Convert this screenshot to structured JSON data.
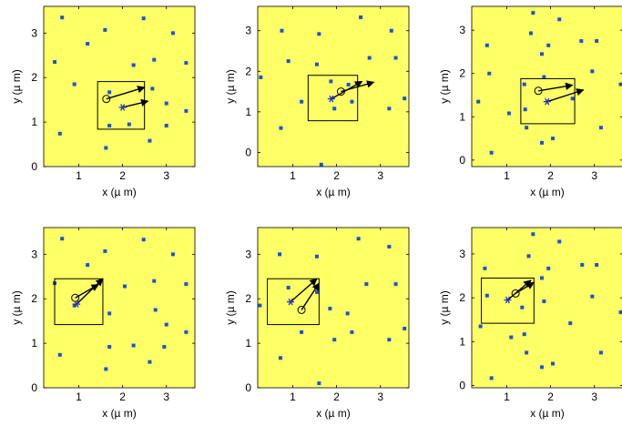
{
  "colors": {
    "plot_background": "#ffff66",
    "dot": "#1a53d6",
    "star": "#1a33cc",
    "axes": "#000000"
  },
  "chart_data": [
    {
      "type": "scatter",
      "xlabel": "x (µ m)",
      "ylabel": "y (µ m)",
      "xlim": [
        0.2,
        3.65
      ],
      "ylim": [
        0,
        3.6
      ],
      "xticks": [
        1,
        2,
        3
      ],
      "yticks": [
        0,
        1,
        2,
        3
      ],
      "box": {
        "x0": 1.43,
        "y0": 0.84,
        "x1": 2.5,
        "y1": 1.91
      },
      "circle": [
        1.63,
        1.52
      ],
      "star": [
        2.0,
        1.33
      ],
      "arrows": [
        {
          "from": [
            1.63,
            1.52
          ],
          "to": [
            2.5,
            1.78
          ]
        },
        {
          "from": [
            2.0,
            1.33
          ],
          "to": [
            2.58,
            1.47
          ]
        }
      ],
      "points": [
        [
          0.62,
          3.35
        ],
        [
          1.2,
          2.76
        ],
        [
          1.6,
          3.07
        ],
        [
          2.48,
          3.33
        ],
        [
          3.15,
          3.0
        ],
        [
          0.45,
          2.35
        ],
        [
          2.72,
          2.4
        ],
        [
          3.45,
          2.33
        ],
        [
          2.25,
          2.28
        ],
        [
          0.9,
          1.85
        ],
        [
          1.7,
          1.67
        ],
        [
          2.68,
          1.75
        ],
        [
          3.0,
          1.42
        ],
        [
          3.45,
          1.25
        ],
        [
          1.7,
          0.92
        ],
        [
          2.15,
          0.95
        ],
        [
          3.0,
          0.92
        ],
        [
          0.57,
          0.74
        ],
        [
          2.62,
          0.58
        ],
        [
          1.62,
          0.42
        ]
      ]
    },
    {
      "type": "scatter",
      "xlabel": "x (µ m)",
      "ylabel": "y (µ m)",
      "xlim": [
        0.2,
        3.65
      ],
      "ylim": [
        -0.35,
        3.6
      ],
      "xticks": [
        1,
        2,
        3
      ],
      "yticks": [
        0,
        1,
        2,
        3
      ],
      "box": {
        "x0": 1.35,
        "y0": 0.78,
        "x1": 2.48,
        "y1": 1.9
      },
      "circle": [
        2.1,
        1.5
      ],
      "star": [
        1.88,
        1.32
      ],
      "arrows": [
        {
          "from": [
            2.1,
            1.5
          ],
          "to": [
            2.85,
            1.73
          ]
        },
        {
          "from": [
            1.88,
            1.32
          ],
          "to": [
            2.58,
            1.75
          ]
        }
      ],
      "points": [
        [
          0.75,
          3.0
        ],
        [
          1.6,
          2.92
        ],
        [
          2.55,
          3.33
        ],
        [
          3.25,
          3.0
        ],
        [
          0.9,
          2.25
        ],
        [
          1.55,
          2.17
        ],
        [
          2.75,
          2.33
        ],
        [
          3.35,
          2.33
        ],
        [
          0.27,
          1.85
        ],
        [
          1.87,
          1.75
        ],
        [
          2.27,
          1.67
        ],
        [
          1.2,
          1.25
        ],
        [
          2.35,
          1.25
        ],
        [
          3.2,
          1.08
        ],
        [
          1.95,
          1.08
        ],
        [
          3.55,
          1.33
        ],
        [
          0.73,
          0.6
        ],
        [
          1.65,
          -0.3
        ]
      ]
    },
    {
      "type": "scatter",
      "xlabel": "x (µ m)",
      "ylabel": "y (µ m)",
      "xlim": [
        0.2,
        3.65
      ],
      "ylim": [
        -0.15,
        3.55
      ],
      "xticks": [
        1,
        2,
        3
      ],
      "yticks": [
        0,
        1,
        2,
        3
      ],
      "box": {
        "x0": 1.32,
        "y0": 0.84,
        "x1": 2.55,
        "y1": 1.88
      },
      "circle": [
        1.72,
        1.6
      ],
      "star": [
        1.92,
        1.35
      ],
      "arrows": [
        {
          "from": [
            1.72,
            1.6
          ],
          "to": [
            2.5,
            1.73
          ]
        },
        {
          "from": [
            1.92,
            1.35
          ],
          "to": [
            2.75,
            1.62
          ]
        }
      ],
      "points": [
        [
          1.6,
          3.4
        ],
        [
          2.2,
          3.25
        ],
        [
          1.55,
          2.93
        ],
        [
          0.55,
          2.65
        ],
        [
          1.95,
          2.65
        ],
        [
          2.7,
          2.75
        ],
        [
          3.05,
          2.75
        ],
        [
          1.8,
          2.45
        ],
        [
          0.6,
          2.0
        ],
        [
          2.95,
          2.05
        ],
        [
          3.6,
          1.75
        ],
        [
          1.4,
          1.75
        ],
        [
          1.85,
          1.92
        ],
        [
          0.35,
          1.35
        ],
        [
          1.05,
          1.08
        ],
        [
          1.42,
          1.17
        ],
        [
          2.5,
          1.42
        ],
        [
          3.15,
          0.75
        ],
        [
          1.45,
          0.75
        ],
        [
          0.65,
          0.17
        ],
        [
          2.05,
          0.5
        ],
        [
          1.8,
          0.4
        ]
      ]
    },
    {
      "type": "scatter",
      "xlabel": "x (µ m)",
      "ylabel": "y (µ m)",
      "xlim": [
        0.2,
        3.65
      ],
      "ylim": [
        0,
        3.6
      ],
      "xticks": [
        1,
        2,
        3
      ],
      "yticks": [
        0,
        1,
        2,
        3
      ],
      "box": {
        "x0": 0.45,
        "y0": 1.42,
        "x1": 1.55,
        "y1": 2.45
      },
      "circle": [
        0.92,
        2.02
      ],
      "star": [
        0.95,
        1.88
      ],
      "arrows": [
        {
          "from": [
            0.92,
            2.02
          ],
          "to": [
            1.45,
            2.32
          ]
        },
        {
          "from": [
            0.95,
            1.88
          ],
          "to": [
            1.55,
            2.45
          ]
        }
      ],
      "points": [
        [
          0.62,
          3.35
        ],
        [
          1.2,
          2.76
        ],
        [
          1.6,
          3.07
        ],
        [
          2.48,
          3.33
        ],
        [
          3.15,
          3.0
        ],
        [
          0.45,
          2.35
        ],
        [
          2.72,
          2.4
        ],
        [
          3.45,
          2.33
        ],
        [
          2.05,
          2.28
        ],
        [
          0.9,
          1.85
        ],
        [
          1.7,
          1.67
        ],
        [
          2.75,
          1.75
        ],
        [
          3.0,
          1.42
        ],
        [
          3.45,
          1.25
        ],
        [
          1.7,
          0.92
        ],
        [
          2.25,
          0.95
        ],
        [
          2.95,
          0.92
        ],
        [
          0.57,
          0.74
        ],
        [
          2.62,
          0.58
        ],
        [
          1.62,
          0.42
        ]
      ]
    },
    {
      "type": "scatter",
      "xlabel": "x (µ m)",
      "ylabel": "y (µ m)",
      "xlim": [
        0.2,
        3.65
      ],
      "ylim": [
        0,
        3.6
      ],
      "xticks": [
        1,
        2,
        3
      ],
      "yticks": [
        0,
        1,
        2,
        3
      ],
      "box": {
        "x0": 0.42,
        "y0": 1.42,
        "x1": 1.6,
        "y1": 2.45
      },
      "circle": [
        1.2,
        1.75
      ],
      "star": [
        0.95,
        1.93
      ],
      "arrows": [
        {
          "from": [
            1.2,
            1.75
          ],
          "to": [
            1.6,
            2.35
          ]
        },
        {
          "from": [
            0.95,
            1.93
          ],
          "to": [
            1.55,
            2.45
          ]
        }
      ],
      "points": [
        [
          0.7,
          3.0
        ],
        [
          1.55,
          2.95
        ],
        [
          2.5,
          3.35
        ],
        [
          3.2,
          3.17
        ],
        [
          0.9,
          2.25
        ],
        [
          1.55,
          2.15
        ],
        [
          2.68,
          2.33
        ],
        [
          3.35,
          2.33
        ],
        [
          0.25,
          1.85
        ],
        [
          1.85,
          1.78
        ],
        [
          2.25,
          1.67
        ],
        [
          1.2,
          1.25
        ],
        [
          2.35,
          1.25
        ],
        [
          3.2,
          1.08
        ],
        [
          1.95,
          1.08
        ],
        [
          3.55,
          1.33
        ],
        [
          0.72,
          0.67
        ],
        [
          1.6,
          0.1
        ]
      ]
    },
    {
      "type": "scatter",
      "xlabel": "x (µ m)",
      "ylabel": "y (µ m)",
      "xlim": [
        0.2,
        3.65
      ],
      "ylim": [
        -0.05,
        3.6
      ],
      "xticks": [
        1,
        2,
        3
      ],
      "yticks": [
        0,
        1,
        2,
        3
      ],
      "box": {
        "x0": 0.42,
        "y0": 1.42,
        "x1": 1.62,
        "y1": 2.45
      },
      "circle": [
        1.2,
        2.1
      ],
      "star": [
        1.02,
        1.95
      ],
      "arrows": [
        {
          "from": [
            1.2,
            2.1
          ],
          "to": [
            1.62,
            2.35
          ]
        },
        {
          "from": [
            1.02,
            1.95
          ],
          "to": [
            1.55,
            2.4
          ]
        }
      ],
      "points": [
        [
          1.6,
          3.45
        ],
        [
          2.2,
          3.28
        ],
        [
          1.5,
          2.95
        ],
        [
          0.5,
          2.67
        ],
        [
          1.95,
          2.67
        ],
        [
          2.72,
          2.75
        ],
        [
          3.05,
          2.75
        ],
        [
          1.8,
          2.45
        ],
        [
          0.55,
          2.05
        ],
        [
          2.95,
          2.03
        ],
        [
          3.6,
          1.67
        ],
        [
          1.35,
          1.78
        ],
        [
          1.85,
          1.92
        ],
        [
          0.4,
          1.35
        ],
        [
          1.1,
          1.1
        ],
        [
          1.4,
          1.17
        ],
        [
          2.45,
          1.42
        ],
        [
          3.15,
          0.75
        ],
        [
          1.45,
          0.75
        ],
        [
          0.65,
          0.17
        ],
        [
          2.05,
          0.5
        ],
        [
          1.8,
          0.42
        ]
      ]
    }
  ]
}
